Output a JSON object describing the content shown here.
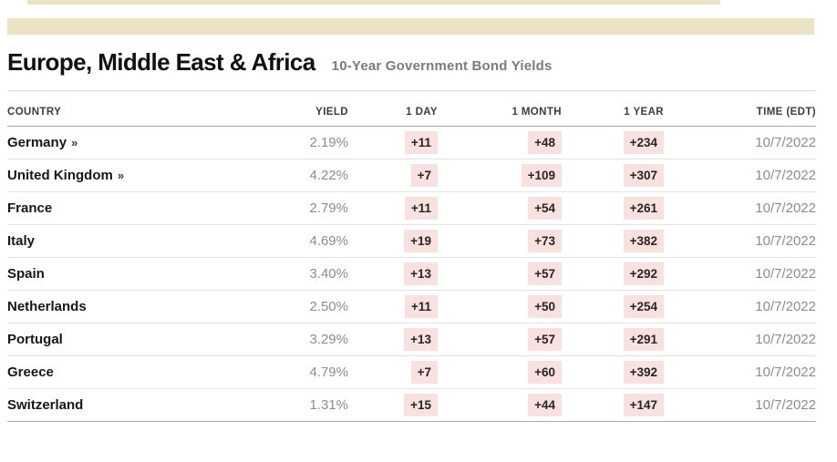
{
  "section": {
    "title": "Europe, Middle East & Africa",
    "subtitle": "10-Year Government Bond Yields"
  },
  "table": {
    "headers": {
      "country": "COUNTRY",
      "yield": "YIELD",
      "day": "1 DAY",
      "month": "1 MONTH",
      "year": "1 YEAR",
      "time": "TIME (EDT)"
    },
    "rows": [
      {
        "country": "Germany",
        "marker": "»",
        "yield": "2.19%",
        "day": "+11",
        "month": "+48",
        "year": "+234",
        "time": "10/7/2022"
      },
      {
        "country": "United Kingdom",
        "marker": "»",
        "yield": "4.22%",
        "day": "+7",
        "month": "+109",
        "year": "+307",
        "time": "10/7/2022"
      },
      {
        "country": "France",
        "marker": "",
        "yield": "2.79%",
        "day": "+11",
        "month": "+54",
        "year": "+261",
        "time": "10/7/2022"
      },
      {
        "country": "Italy",
        "marker": "",
        "yield": "4.69%",
        "day": "+19",
        "month": "+73",
        "year": "+382",
        "time": "10/7/2022"
      },
      {
        "country": "Spain",
        "marker": "",
        "yield": "3.40%",
        "day": "+13",
        "month": "+57",
        "year": "+292",
        "time": "10/7/2022"
      },
      {
        "country": "Netherlands",
        "marker": "",
        "yield": "2.50%",
        "day": "+11",
        "month": "+50",
        "year": "+254",
        "time": "10/7/2022"
      },
      {
        "country": "Portugal",
        "marker": "",
        "yield": "3.29%",
        "day": "+13",
        "month": "+57",
        "year": "+291",
        "time": "10/7/2022"
      },
      {
        "country": "Greece",
        "marker": "",
        "yield": "4.79%",
        "day": "+7",
        "month": "+60",
        "year": "+392",
        "time": "10/7/2022"
      },
      {
        "country": "Switzerland",
        "marker": "",
        "yield": "1.31%",
        "day": "+15",
        "month": "+44",
        "year": "+147",
        "time": "10/7/2022"
      }
    ]
  },
  "colors": {
    "accent_beige": "#ece2c6",
    "change_badge_bg": "#f8e1de",
    "muted_text": "#8d8d8d"
  }
}
